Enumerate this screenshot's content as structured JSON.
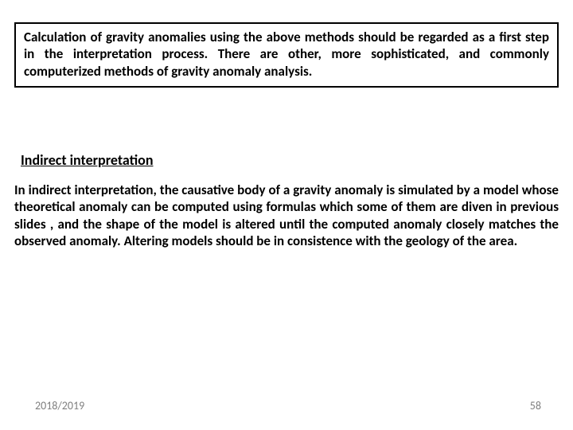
{
  "box": {
    "text": "Calculation of gravity anomalies using the above methods should be regarded as a first step in the interpretation process. There are other, more sophisticated, and commonly computerized methods of gravity anomaly analysis."
  },
  "subheading": "Indirect interpretation",
  "body": "In indirect interpretation, the causative body of a gravity anomaly is simulated by a model whose theoretical anomaly can be computed using formulas which some of them are diven in previous slides , and the shape of the model is altered until the computed anomaly closely matches the observed anomaly. Altering models should be in consistence with the geology of the area.",
  "footer": {
    "date": "2018/2019",
    "page": "58"
  },
  "colors": {
    "text": "#000000",
    "footer": "#7f7f7f",
    "background": "#ffffff",
    "border": "#000000"
  },
  "fonts": {
    "body_size_pt": 13,
    "body_weight": 700,
    "footer_size_pt": 11
  }
}
